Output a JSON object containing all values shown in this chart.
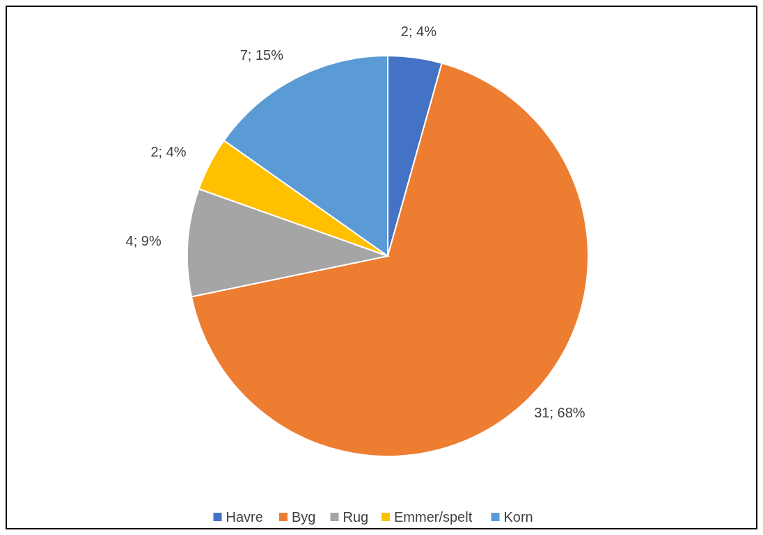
{
  "chart_data": {
    "type": "pie",
    "categories": [
      "Havre",
      "Byg",
      "Rug",
      "Emmer/spelt",
      "Korn"
    ],
    "values": [
      2,
      31,
      4,
      2,
      7
    ],
    "colors": [
      "#4472c4",
      "#ed7d31",
      "#a5a5a5",
      "#ffc000",
      "#5b9bd5"
    ],
    "value_labels": [
      "2; 4%",
      "31; 68%",
      "4; 9%",
      "2; 4%",
      "7; 15%"
    ],
    "legend": "bottom"
  }
}
